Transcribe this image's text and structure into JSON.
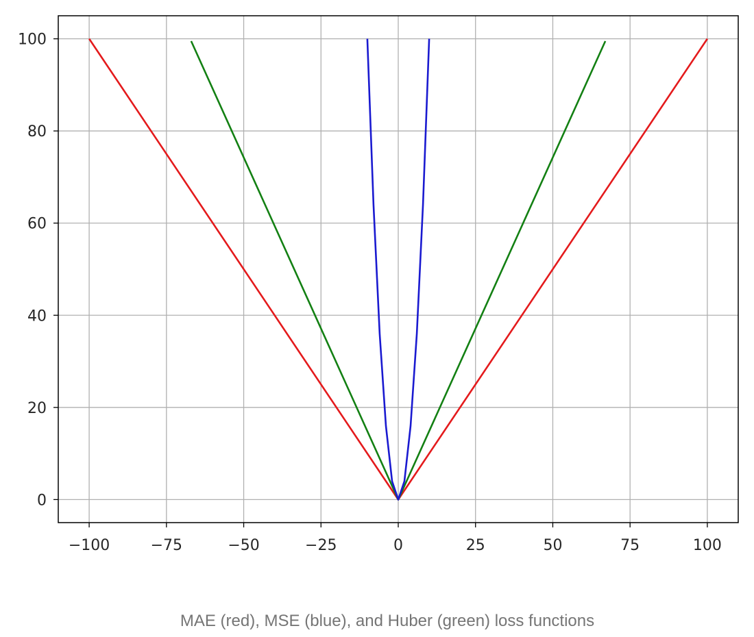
{
  "chart_data": {
    "type": "line",
    "title": "",
    "xlabel": "",
    "ylabel": "",
    "xlim": [
      -110,
      110
    ],
    "ylim": [
      -5,
      105
    ],
    "grid": true,
    "x_ticks": [
      -100,
      -75,
      -50,
      -25,
      0,
      25,
      50,
      75,
      100
    ],
    "x_tick_labels": [
      "−100",
      "−75",
      "−50",
      "−25",
      "0",
      "25",
      "50",
      "75",
      "100"
    ],
    "y_ticks": [
      0,
      20,
      40,
      60,
      80,
      100
    ],
    "y_tick_labels": [
      "0",
      "20",
      "40",
      "60",
      "80",
      "100"
    ],
    "series": [
      {
        "key": "mae",
        "color": "#e41a1c",
        "x": [
          -100,
          0,
          100
        ],
        "y": [
          100,
          0,
          100
        ]
      },
      {
        "key": "huber",
        "color": "#138013",
        "x": [
          -67,
          0,
          67
        ],
        "y": [
          99.5,
          0,
          99.5
        ]
      },
      {
        "key": "mse",
        "color": "#1a1ad0",
        "x": [
          -10,
          -8,
          -6,
          -4,
          -2,
          0,
          2,
          4,
          6,
          8,
          10
        ],
        "y": [
          100,
          64,
          36,
          16,
          4,
          0,
          4,
          16,
          36,
          64,
          100
        ]
      }
    ]
  },
  "caption": "MAE (red), MSE (blue), and Huber (green) loss functions"
}
